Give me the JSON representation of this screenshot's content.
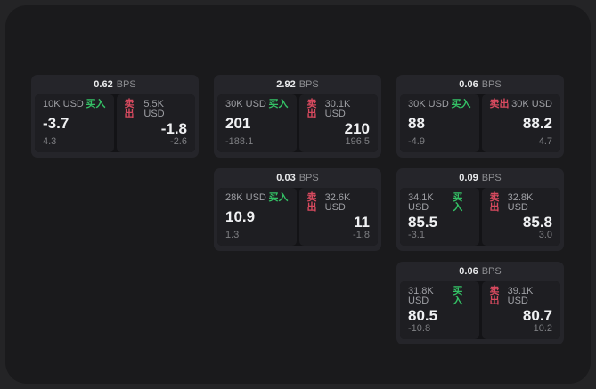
{
  "labels": {
    "bps_unit": "BPS",
    "buy": "买入",
    "sell": "卖出"
  },
  "colors": {
    "buy_green": "#34c065",
    "sell_red": "#d84a5f",
    "page_bg": "#242426",
    "window_bg": "#1a1a1c",
    "card_bg": "#25252a",
    "tile_bg": "#1e1e22"
  },
  "cards": [
    {
      "bps": "0.62",
      "buy": {
        "size": "10K USD",
        "value": "-3.7",
        "sub": "4.3"
      },
      "sell": {
        "size": "5.5K USD",
        "value": "-1.8",
        "sub": "-2.6"
      }
    },
    {
      "bps": "2.92",
      "buy": {
        "size": "30K USD",
        "value": "201",
        "sub": "-188.1"
      },
      "sell": {
        "size": "30.1K USD",
        "value": "210",
        "sub": "196.5"
      }
    },
    {
      "bps": "0.06",
      "buy": {
        "size": "30K USD",
        "value": "88",
        "sub": "-4.9"
      },
      "sell": {
        "size": "30K USD",
        "value": "88.2",
        "sub": "4.7"
      }
    },
    {
      "bps": "0.03",
      "buy": {
        "size": "28K USD",
        "value": "10.9",
        "sub": "1.3"
      },
      "sell": {
        "size": "32.6K USD",
        "value": "11",
        "sub": "-1.8"
      }
    },
    {
      "bps": "0.09",
      "buy": {
        "size": "34.1K USD",
        "value": "85.5",
        "sub": "-3.1"
      },
      "sell": {
        "size": "32.8K USD",
        "value": "85.8",
        "sub": "3.0"
      }
    },
    {
      "bps": "0.06",
      "buy": {
        "size": "31.8K USD",
        "value": "80.5",
        "sub": "-10.8"
      },
      "sell": {
        "size": "39.1K USD",
        "value": "80.7",
        "sub": "10.2"
      }
    }
  ]
}
